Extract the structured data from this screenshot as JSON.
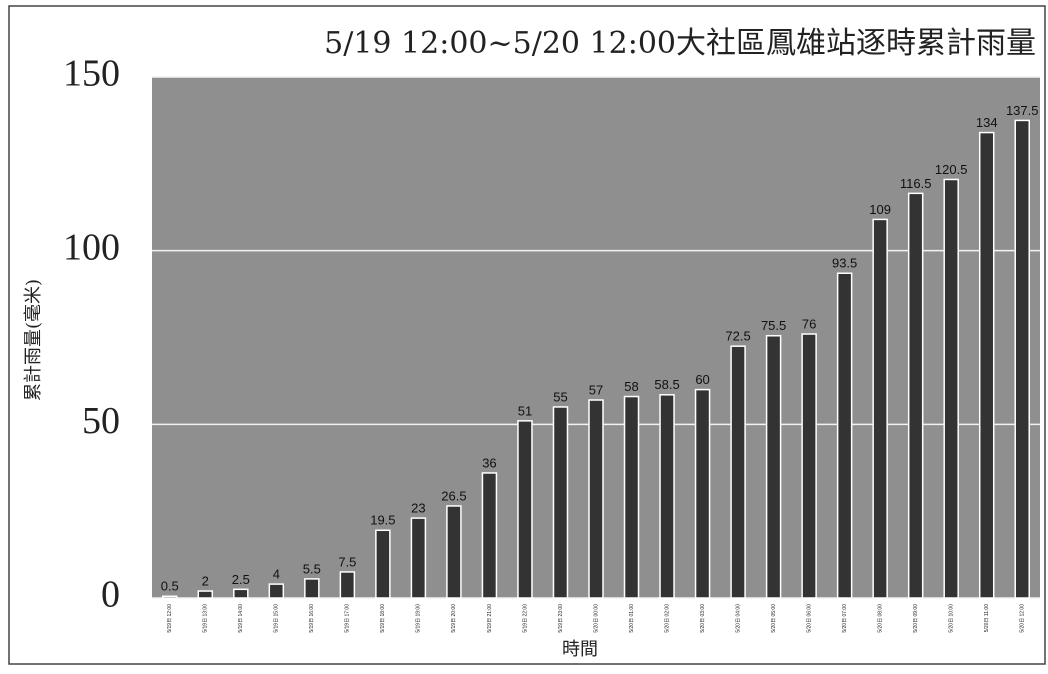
{
  "chart_data": {
    "type": "bar",
    "title": "5/19 12:00~5/20 12:00大社區鳳雄站逐時累計雨量",
    "y_label": "累計雨量(毫米)",
    "x_label": "時間",
    "categories": [
      "5/19日 12:00",
      "5/19日 13:00",
      "5/19日 14:00",
      "5/19日 15:00",
      "5/19日 16:00",
      "5/19日 17:00",
      "5/19日 18:00",
      "5/19日 19:00",
      "5/19日 20:00",
      "5/19日 21:00",
      "5/19日 22:00",
      "5/19日 23:00",
      "5/20日 00:00",
      "5/20日 01:00",
      "5/20日 02:00",
      "5/20日 03:00",
      "5/20日 04:00",
      "5/20日 05:00",
      "5/20日 06:00",
      "5/20日 07:00",
      "5/20日 08:00",
      "5/20日 09:00",
      "5/20日 10:00",
      "5/20日 11:00",
      "5/20日 12:00"
    ],
    "values": [
      0.5,
      2,
      2.5,
      4,
      5.5,
      7.5,
      19.5,
      23,
      26.5,
      36,
      51,
      55,
      57,
      58,
      58.5,
      60,
      72.5,
      75.5,
      76,
      93.5,
      109,
      116.5,
      120.5,
      134,
      137.5
    ],
    "color": "#333333",
    "ylim": [
      0,
      150
    ],
    "yticks": [
      0,
      50,
      100,
      150
    ],
    "grid": true
  }
}
